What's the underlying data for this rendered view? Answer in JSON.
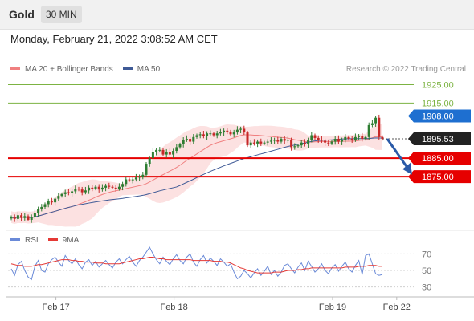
{
  "header": {
    "instrument": "Gold",
    "timeframe": "30 MIN",
    "timestamp": "Monday, February 21, 2022 3:08:52 AM CET"
  },
  "legend": {
    "ma20_label": "MA 20 + Bollinger Bands",
    "ma50_label": "MA 50",
    "copyright": "Research © 2022 Trading Central"
  },
  "rsi_legend": {
    "rsi_label": "RSI",
    "ma_label": "9MA"
  },
  "colors": {
    "up": "#2e7d32",
    "down": "#c62828",
    "ma20": "#f08080",
    "bands": "#fcdcdc",
    "ma50": "#3f5a96",
    "target": "#7cb342",
    "pivot": "#1e6fd0",
    "support": "#e60000",
    "arrow": "#2a5aa8",
    "rsi": "#6a8ad8",
    "rsi_ma": "#e53935"
  },
  "chart_data": [
    {
      "type": "candlestick",
      "x_ticks": [
        "Feb 17",
        "Feb 18",
        "Feb 19",
        "Feb 22"
      ],
      "levels": [
        {
          "value": 1925.0,
          "label": "1925.00",
          "role": "target"
        },
        {
          "value": 1915.0,
          "label": "1915.00",
          "role": "target"
        },
        {
          "value": 1908.0,
          "label": "1908.00",
          "role": "pivot"
        },
        {
          "value": 1895.53,
          "label": "1895.53",
          "role": "last"
        },
        {
          "value": 1885.0,
          "label": "1885.00",
          "role": "support"
        },
        {
          "value": 1875.0,
          "label": "1875.00",
          "role": "support"
        }
      ],
      "forecast": {
        "from": 1895.53,
        "to": 1876.0,
        "direction": "down"
      },
      "series": [
        {
          "name": "MA 20 + Bollinger Bands"
        },
        {
          "name": "MA 50"
        }
      ],
      "close": [
        1853.0,
        1852.0,
        1854.0,
        1852.5,
        1853.5,
        1851.5,
        1853.0,
        1855.0,
        1857.5,
        1858.5,
        1860.0,
        1861.5,
        1861.0,
        1863.0,
        1864.5,
        1865.5,
        1866.5,
        1866.0,
        1867.0,
        1868.5,
        1868.0,
        1866.5,
        1867.5,
        1869.0,
        1868.5,
        1869.5,
        1868.0,
        1869.0,
        1870.0,
        1869.5,
        1869.0,
        1868.5,
        1869.5,
        1871.0,
        1873.5,
        1873.0,
        1873.5,
        1874.5,
        1875.0,
        1876.0,
        1882.0,
        1885.0,
        1888.5,
        1889.5,
        1889.5,
        1887.0,
        1888.5,
        1887.0,
        1889.0,
        1891.0,
        1892.5,
        1895.0,
        1895.5,
        1894.0,
        1896.5,
        1897.5,
        1898.0,
        1897.0,
        1898.5,
        1898.5,
        1897.5,
        1898.5,
        1899.0,
        1900.0,
        1899.5,
        1898.0,
        1899.0,
        1900.5,
        1901.0,
        1899.0,
        1892.0,
        1893.5,
        1893.0,
        1894.0,
        1893.0,
        1893.5,
        1894.0,
        1894.5,
        1895.0,
        1894.0,
        1895.5,
        1894.5,
        1895.0,
        1891.0,
        1891.5,
        1892.0,
        1893.5,
        1892.5,
        1895.0,
        1897.5,
        1896.0,
        1895.0,
        1894.5,
        1893.5,
        1893.0,
        1894.0,
        1895.5,
        1894.0,
        1895.0,
        1896.5,
        1895.5,
        1895.0,
        1896.5,
        1897.0,
        1895.5,
        1896.5,
        1903.0,
        1904.0,
        1907.0,
        1896.5,
        1895.53
      ],
      "x_dates": [
        "Feb 17",
        "Feb 17",
        "Feb 17",
        "Feb 17",
        "Feb 17",
        "Feb 17",
        "Feb 17",
        "Feb 17",
        "Feb 17",
        "Feb 17",
        "Feb 17",
        "Feb 17",
        "Feb 17",
        "Feb 17",
        "Feb 17",
        "Feb 17",
        "Feb 17",
        "Feb 17",
        "Feb 17",
        "Feb 17",
        "Feb 17",
        "Feb 17",
        "Feb 17",
        "Feb 17",
        "Feb 17",
        "Feb 17",
        "Feb 17",
        "Feb 17",
        "Feb 17",
        "Feb 17",
        "Feb 17",
        "Feb 17",
        "Feb 17",
        "Feb 17",
        "Feb 17",
        "Feb 17",
        "Feb 17",
        "Feb 17",
        "Feb 18",
        "Feb 18",
        "Feb 18",
        "Feb 18",
        "Feb 18",
        "Feb 18",
        "Feb 18",
        "Feb 18",
        "Feb 18",
        "Feb 18",
        "Feb 18",
        "Feb 18",
        "Feb 18",
        "Feb 18",
        "Feb 18",
        "Feb 18",
        "Feb 18",
        "Feb 18",
        "Feb 18",
        "Feb 18",
        "Feb 18",
        "Feb 18",
        "Feb 18",
        "Feb 18",
        "Feb 18",
        "Feb 18",
        "Feb 18",
        "Feb 18",
        "Feb 18",
        "Feb 18",
        "Feb 18",
        "Feb 18",
        "Feb 18",
        "Feb 18",
        "Feb 18",
        "Feb 18",
        "Feb 18",
        "Feb 18",
        "Feb 18",
        "Feb 18",
        "Feb 18",
        "Feb 18",
        "Feb 18",
        "Feb 18",
        "Feb 18",
        "Feb 18",
        "Feb 18",
        "Feb 19",
        "Feb 19",
        "Feb 19",
        "Feb 19",
        "Feb 19",
        "Feb 19",
        "Feb 19",
        "Feb 19",
        "Feb 19",
        "Feb 19",
        "Feb 19",
        "Feb 19",
        "Feb 19",
        "Feb 19",
        "Feb 19",
        "Feb 19",
        "Feb 19",
        "Feb 19",
        "Feb 19",
        "Feb 22",
        "Feb 22",
        "Feb 22",
        "Feb 22",
        "Feb 22",
        "Feb 22",
        "Feb 22"
      ]
    },
    {
      "type": "line",
      "ylim": [
        20,
        80
      ],
      "y_ticks": [
        "70",
        "50",
        "30"
      ],
      "series": [
        {
          "name": "RSI",
          "values": [
            52,
            44,
            57,
            61,
            50,
            42,
            39,
            55,
            62,
            50,
            48,
            58,
            63,
            66,
            60,
            55,
            68,
            62,
            58,
            64,
            57,
            52,
            60,
            63,
            56,
            61,
            54,
            58,
            62,
            57,
            53,
            60,
            64,
            58,
            63,
            67,
            60,
            55,
            62,
            66,
            72,
            78,
            70,
            63,
            58,
            66,
            61,
            57,
            64,
            69,
            62,
            58,
            66,
            70,
            60,
            55,
            63,
            68,
            59,
            65,
            61,
            56,
            64,
            60,
            55,
            58,
            48,
            40,
            43,
            50,
            46,
            41,
            47,
            52,
            44,
            49,
            55,
            45,
            50,
            43,
            48,
            56,
            58,
            52,
            47,
            54,
            59,
            50,
            61,
            55,
            48,
            52,
            58,
            50,
            46,
            53,
            57,
            49,
            55,
            60,
            52,
            48,
            56,
            62,
            45,
            68,
            70,
            58,
            46,
            44,
            45
          ]
        },
        {
          "name": "9MA",
          "values": [
            58,
            57,
            56,
            56,
            55,
            55,
            55,
            56,
            57,
            57,
            58,
            59,
            60,
            61,
            62,
            63,
            63,
            63,
            62,
            62,
            61,
            61,
            60,
            60,
            60,
            59,
            59,
            59,
            58,
            58,
            58,
            58,
            58,
            59,
            60,
            61,
            62,
            63,
            64,
            64,
            65,
            66,
            66,
            65,
            64,
            64,
            63,
            63,
            63,
            63,
            63,
            63,
            63,
            63,
            62,
            62,
            62,
            62,
            62,
            62,
            61,
            61,
            61,
            60,
            60,
            59,
            57,
            55,
            53,
            52,
            50,
            49,
            48,
            47,
            47,
            47,
            47,
            47,
            48,
            48,
            48,
            49,
            50,
            50,
            50,
            51,
            51,
            52,
            52,
            53,
            53,
            53,
            53,
            53,
            53,
            53,
            53,
            53,
            53,
            54,
            54,
            54,
            54,
            55,
            55,
            55,
            56,
            56,
            56,
            55,
            55
          ]
        }
      ]
    }
  ]
}
